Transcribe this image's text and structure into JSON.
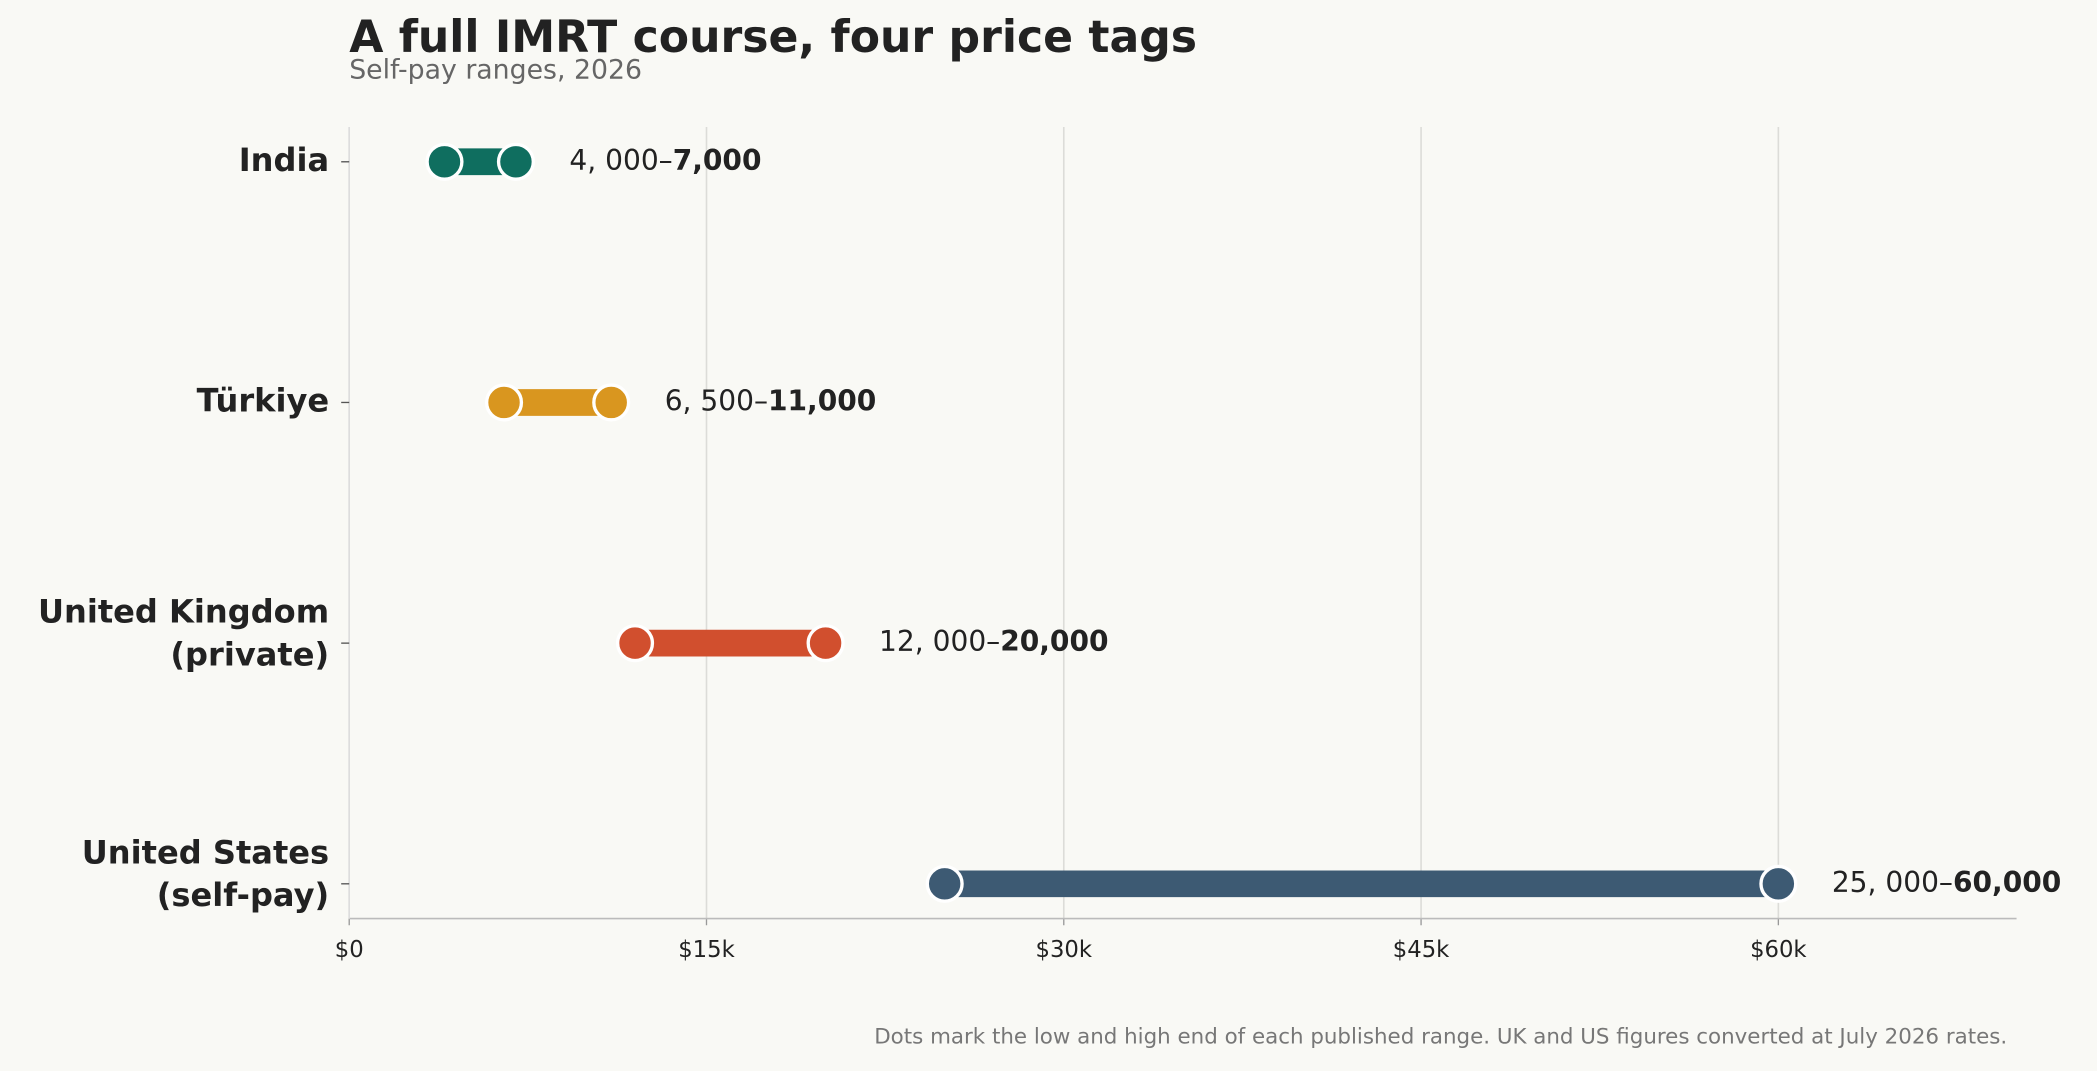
{
  "chart_data": {
    "type": "dumbbell",
    "title": "A full IMRT course, four price tags",
    "subtitle": "Self-pay ranges, 2026",
    "footnote": "Dots mark the low and high end of each published range. UK and US figures converted at July 2026 rates.",
    "categories": [
      "India",
      "Türkiye",
      "United Kingdom\n(private)",
      "United States\n(self-pay)"
    ],
    "low": [
      4000,
      6500,
      12000,
      25000
    ],
    "high": [
      7000,
      11000,
      20000,
      60000
    ],
    "low_labels": [
      "4, 000–",
      "6, 500–",
      "12, 000–",
      "25, 000–"
    ],
    "high_labels": [
      "7,000",
      "11,000",
      "20,000",
      "60,000"
    ],
    "colors": [
      "#0f6e5f",
      "#d9961f",
      "#d14f2e",
      "#3d5a73"
    ],
    "xlim": [
      0,
      70000
    ],
    "xticks": [
      {
        "value": 0,
        "label": "$0"
      },
      {
        "value": 15000,
        "label": "$15k"
      },
      {
        "value": 30000,
        "label": "$30k"
      },
      {
        "value": 45000,
        "label": "$45k"
      },
      {
        "value": 60000,
        "label": "$60k"
      }
    ],
    "grid": true
  }
}
